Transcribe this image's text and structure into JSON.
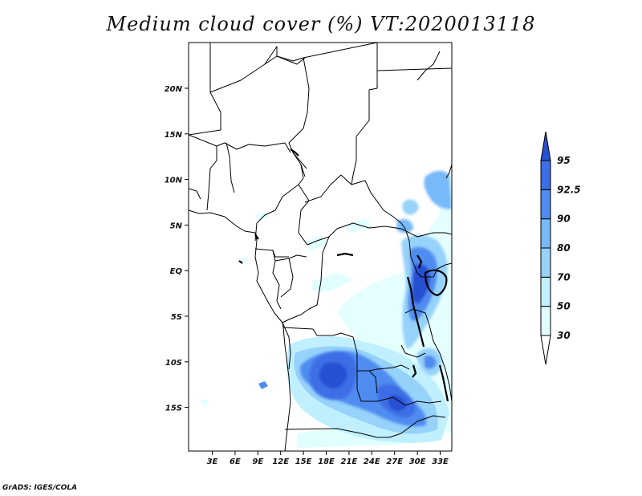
{
  "title": "Medium cloud cover (%) VT:2020013118",
  "credit": "GrADS: IGES/COLA",
  "map": {
    "lat_labels": [
      "20N",
      "15N",
      "10N",
      "5N",
      "EQ",
      "5S",
      "10S",
      "15S"
    ],
    "lon_labels": [
      "3E",
      "6E",
      "9E",
      "12E",
      "15E",
      "18E",
      "21E",
      "24E",
      "27E",
      "30E",
      "33E"
    ]
  },
  "legend": {
    "levels": [
      "30",
      "50",
      "70",
      "80",
      "90",
      "92.5",
      "95"
    ],
    "colors": [
      "#e1ffff",
      "#c0f0ff",
      "#96d2fa",
      "#78b9fa",
      "#508cf0",
      "#3c6ee6",
      "#2850d2"
    ]
  }
}
